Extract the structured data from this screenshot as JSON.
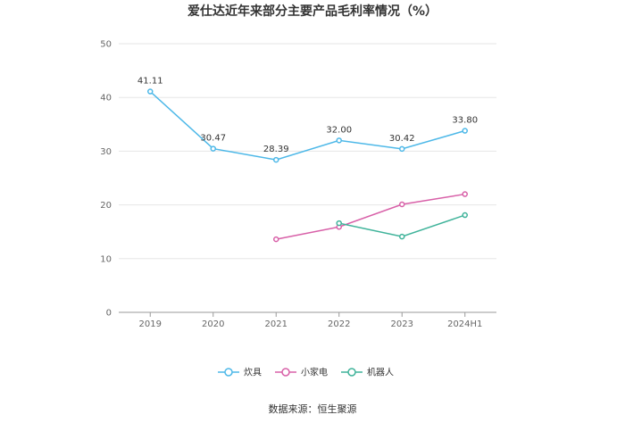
{
  "chart_data": {
    "type": "line",
    "title": "爱仕达近年来部分主要产品毛利率情况（%）",
    "xlabel": "",
    "ylabel": "",
    "categories": [
      "2019",
      "2020",
      "2021",
      "2022",
      "2023",
      "2024H1"
    ],
    "ylim": [
      0,
      50
    ],
    "yticks": [
      "0",
      "10",
      "20",
      "30",
      "40",
      "50"
    ],
    "grid": true,
    "legend_position": "bottom",
    "series": [
      {
        "name": "炊具",
        "color": "#4db8e8",
        "values": [
          41.11,
          30.47,
          28.39,
          32.0,
          30.42,
          33.8
        ],
        "labels": [
          "41.11",
          "30.47",
          "28.39",
          "32.00",
          "30.42",
          "33.80"
        ]
      },
      {
        "name": "小家电",
        "color": "#d860a8",
        "values": [
          null,
          null,
          13.6,
          15.9,
          20.1,
          22.0
        ],
        "labels": []
      },
      {
        "name": "机器人",
        "color": "#3fb39a",
        "values": [
          null,
          null,
          null,
          16.6,
          14.1,
          18.1
        ],
        "labels": []
      }
    ]
  },
  "footer": {
    "source": "数据来源：恒生聚源"
  }
}
